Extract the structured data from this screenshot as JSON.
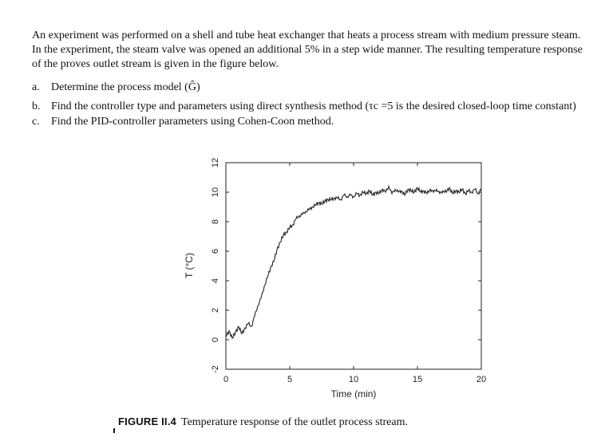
{
  "problem": {
    "intro": "An experiment was performed on a shell and tube heat exchanger that heats a process stream with medium pressure steam. In the experiment, the steam valve was opened an additional 5% in a step wide manner. The resulting temperature response of the proves outlet stream is given in the figure below.",
    "questions": [
      {
        "label": "a.",
        "text": "Determine the process model (Ĝ)"
      },
      {
        "label": "b.",
        "text": "Find the controller type and parameters using direct synthesis method (τc =5  is the desired closed-loop time constant)"
      },
      {
        "label": "c.",
        "text": "Find the PID-controller parameters using Cohen-Coon method."
      }
    ]
  },
  "figure": {
    "number": "FIGURE II.4",
    "caption": "Temperature response of the outlet process stream."
  },
  "chart_data": {
    "type": "line",
    "title": "",
    "xlabel": "Time (min)",
    "ylabel": "T (°C)",
    "xlim": [
      0,
      20
    ],
    "ylim": [
      -2,
      12
    ],
    "x_ticks": [
      "0",
      "5",
      "10",
      "15",
      "20"
    ],
    "y_ticks": [
      "-2",
      "0",
      "2",
      "4",
      "6",
      "8",
      "10",
      "12"
    ],
    "grid": false,
    "series": [
      {
        "values_x": [
          0.0,
          0.25,
          0.5,
          0.75,
          1.0,
          1.25,
          1.5,
          1.75,
          2.0,
          2.25,
          2.5,
          2.75,
          3.0,
          3.25,
          3.5,
          3.75,
          4.0,
          4.25,
          4.5,
          4.75,
          5.0,
          5.25,
          5.5,
          5.75,
          6.0,
          6.25,
          6.5,
          6.75,
          7.0,
          7.25,
          7.5,
          7.75,
          8.0,
          8.25,
          8.5,
          8.75,
          9.0,
          9.25,
          9.5,
          9.75,
          10.0,
          10.25,
          10.5,
          10.75,
          11.0,
          11.25,
          11.5,
          11.75,
          12.0,
          12.25,
          12.5,
          12.75,
          13.0,
          13.25,
          13.5,
          13.75,
          14.0,
          14.25,
          14.5,
          14.75,
          15.0,
          15.25,
          15.5,
          15.75,
          16.0,
          16.25,
          16.5,
          16.75,
          17.0,
          17.25,
          17.5,
          17.75,
          18.0,
          18.25,
          18.5,
          18.75,
          19.0,
          19.25,
          19.5,
          19.75,
          20.0
        ],
        "values_y": [
          0.2,
          0.6,
          0.1,
          0.5,
          0.9,
          0.4,
          0.8,
          1.1,
          0.9,
          1.6,
          2.3,
          2.8,
          3.6,
          4.2,
          4.9,
          5.3,
          6.1,
          6.6,
          7.1,
          7.3,
          7.6,
          7.8,
          8.2,
          8.4,
          8.5,
          8.7,
          8.8,
          9.0,
          9.1,
          9.3,
          9.2,
          9.4,
          9.5,
          9.5,
          9.6,
          9.6,
          9.5,
          9.8,
          9.7,
          9.8,
          9.7,
          9.9,
          9.8,
          10.0,
          9.9,
          10.1,
          9.8,
          10.0,
          9.9,
          10.2,
          10.0,
          10.4,
          9.9,
          10.2,
          10.0,
          10.1,
          9.8,
          10.2,
          10.1,
          10.0,
          10.3,
          10.0,
          10.1,
          9.9,
          10.2,
          10.0,
          10.2,
          9.9,
          10.1,
          10.0,
          10.3,
          9.9,
          10.1,
          10.0,
          10.2,
          9.9,
          10.1,
          10.0,
          10.2,
          9.9,
          10.2
        ]
      }
    ]
  }
}
